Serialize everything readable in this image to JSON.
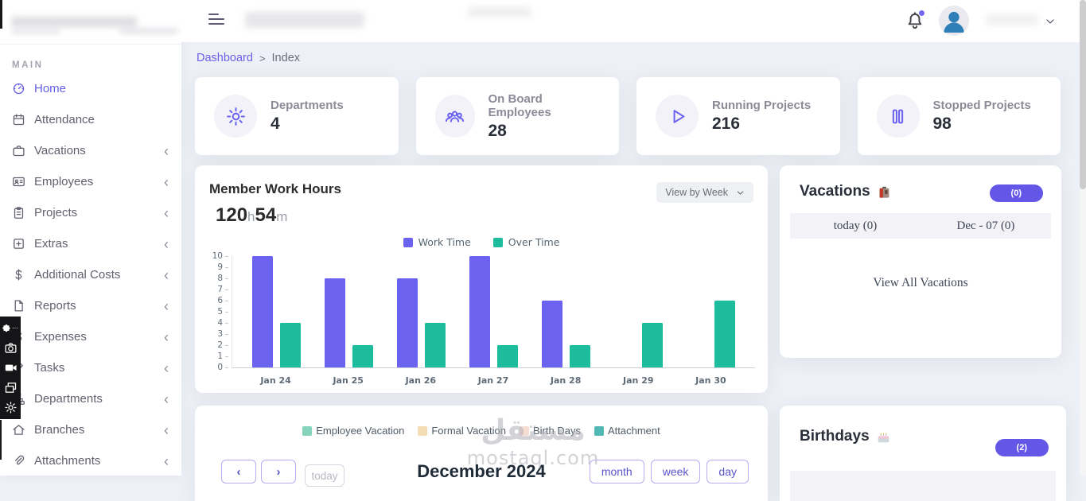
{
  "colors": {
    "accent": "#655fe7",
    "work_time_bar": "#6b63f0",
    "over_time_bar": "#1dbc9c",
    "background": "#eef0f7"
  },
  "sidebar": {
    "section_label": "MAIN",
    "submenu_chevron": "‹",
    "items": [
      {
        "label": "Home",
        "icon": "dashboard-icon",
        "active": true,
        "has_submenu": false
      },
      {
        "label": "Attendance",
        "icon": "calendar-icon",
        "active": false,
        "has_submenu": false
      },
      {
        "label": "Vacations",
        "icon": "briefcase-icon",
        "active": false,
        "has_submenu": true
      },
      {
        "label": "Employees",
        "icon": "id-card-icon",
        "active": false,
        "has_submenu": true
      },
      {
        "label": "Projects",
        "icon": "clipboard-icon",
        "active": false,
        "has_submenu": true
      },
      {
        "label": "Extras",
        "icon": "plus-square-icon",
        "active": false,
        "has_submenu": true
      },
      {
        "label": "Additional Costs",
        "icon": "dollar-icon",
        "active": false,
        "has_submenu": true
      },
      {
        "label": "Reports",
        "icon": "file-icon",
        "active": false,
        "has_submenu": true
      },
      {
        "label": "Expenses",
        "icon": "dollar-icon",
        "active": false,
        "has_submenu": true
      },
      {
        "label": "Tasks",
        "icon": "pencil-icon",
        "active": false,
        "has_submenu": true
      },
      {
        "label": "Departments",
        "icon": "sitemap-icon",
        "active": false,
        "has_submenu": true
      },
      {
        "label": "Branches",
        "icon": "home-icon",
        "active": false,
        "has_submenu": true
      },
      {
        "label": "Attachments",
        "icon": "paperclip-icon",
        "active": false,
        "has_submenu": true
      }
    ]
  },
  "topbar": {
    "hamburger_icon": "hamburger-icon",
    "bell_icon": "bell-icon",
    "avatar_icon": "user-icon",
    "user_chevron_icon": "chevron-down-icon"
  },
  "breadcrumb": {
    "link": "Dashboard",
    "separator": ">",
    "current": "Index"
  },
  "stats": [
    {
      "label": "Departments",
      "value": "4",
      "icon": "gear-icon"
    },
    {
      "label": "On Board Employees",
      "value": "28",
      "icon": "users-icon"
    },
    {
      "label": "Running Projects",
      "value": "216",
      "icon": "play-icon"
    },
    {
      "label": "Stopped Projects",
      "value": "98",
      "icon": "pause-icon"
    }
  ],
  "work_hours": {
    "title": "Member Work Hours",
    "hours": "120",
    "hours_unit": "h",
    "minutes": "54",
    "minutes_unit": "m",
    "view_select_value": "View by Week"
  },
  "chart_data": {
    "type": "bar",
    "title": "Member Work Hours",
    "categories": [
      "Jan 24",
      "Jan 25",
      "Jan 26",
      "Jan 27",
      "Jan 28",
      "Jan 29",
      "Jan 30"
    ],
    "series": [
      {
        "name": "Work Time",
        "color": "#6b63f0",
        "values": [
          10,
          8,
          8,
          10,
          6,
          0,
          0
        ]
      },
      {
        "name": "Over Time",
        "color": "#1dbc9c",
        "values": [
          4,
          2,
          4,
          2,
          2,
          4,
          6
        ]
      }
    ],
    "xlabel": "",
    "ylabel": "",
    "ylim": [
      0,
      10
    ],
    "yticks": [
      0,
      1,
      2,
      3,
      4,
      5,
      6,
      7,
      8,
      9,
      10
    ],
    "legend_position": "top",
    "grid": false
  },
  "vacations": {
    "title": "Vacations",
    "title_icon": "luggage-emoji",
    "count_badge": "(0)",
    "tabs": [
      {
        "label": "today (0)"
      },
      {
        "label": "Dec - 07 (0)"
      }
    ],
    "view_all_label": "View All Vacations"
  },
  "calendar": {
    "legend": [
      {
        "label": "Employee Vacation",
        "color": "#86d3bc"
      },
      {
        "label": "Formal Vacation",
        "color": "#f2ddb5"
      },
      {
        "label": "Birth Days",
        "color": "#f5ddd3"
      },
      {
        "label": "Attachment",
        "color": "#52b8b4"
      }
    ],
    "toolbar": {
      "prev": "‹",
      "next": "›",
      "today_label": "today",
      "title": "December 2024",
      "views": [
        "month",
        "week",
        "day"
      ]
    }
  },
  "birthdays": {
    "title": "Birthdays",
    "title_icon": "cake-emoji",
    "count_badge": "(2)"
  },
  "watermark": {
    "line1": "مستقل",
    "line2": "mostaql.com"
  },
  "capture_toolbar": {
    "icons": [
      "puzzle-icon",
      "camera-icon",
      "video-icon",
      "window-icon",
      "gear-icon"
    ]
  }
}
